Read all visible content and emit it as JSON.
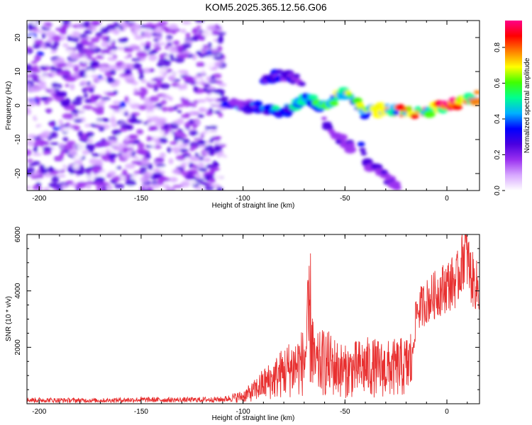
{
  "title": "KOM5.2025.365.12.56.G06",
  "chart_data": [
    {
      "type": "heatmap",
      "xlabel": "Height of straight line (km)",
      "ylabel": "Frequency (Hz)",
      "xlim": [
        -206,
        16
      ],
      "ylim": [
        -25,
        25
      ],
      "xticks": [
        -200,
        -150,
        -100,
        -50,
        0
      ],
      "yticks": [
        -20,
        -10,
        0,
        10,
        20
      ],
      "colorbar": {
        "label": "Normalized spectral amplitude",
        "range": [
          0,
          0.95
        ],
        "ticks": [
          0,
          0.2,
          0.4,
          0.6,
          0.8
        ],
        "colors": [
          "#ffffff",
          "#d8a8ff",
          "#9a30f0",
          "#4a00e0",
          "#0000ff",
          "#00b0ff",
          "#00ff90",
          "#40ff00",
          "#ffff00",
          "#ff8000",
          "#ff0000",
          "#ff0088"
        ]
      },
      "features": [
        {
          "name": "noise",
          "x_range": [
            -206,
            -110
          ],
          "y_range": [
            -25,
            25
          ],
          "amplitude": 0.2
        },
        {
          "name": "trace",
          "points": [
            [
              -110,
              1
            ],
            [
              -100,
              0
            ],
            [
              -90,
              -1
            ],
            [
              -80,
              -2
            ],
            [
              -70,
              2
            ],
            [
              -60,
              0
            ],
            [
              -50,
              4
            ],
            [
              -40,
              -2
            ],
            [
              -30,
              -1
            ],
            [
              -20,
              -2
            ],
            [
              -10,
              -2
            ],
            [
              0,
              0
            ],
            [
              10,
              1
            ],
            [
              16,
              3
            ]
          ],
          "amplitude": 0.95
        },
        {
          "name": "mode-2",
          "points": [
            [
              -60,
              -5
            ],
            [
              -52,
              -10
            ],
            [
              -46,
              -13
            ]
          ],
          "amplitude": 0.3
        },
        {
          "name": "mode-3",
          "points": [
            [
              -42,
              -12
            ],
            [
              -38,
              -18
            ],
            [
              -30,
              -21
            ],
            [
              -24,
              -25
            ]
          ],
          "amplitude": 0.3
        },
        {
          "name": "mode-4",
          "points": [
            [
              -90,
              8
            ],
            [
              -80,
              9
            ],
            [
              -70,
              7
            ]
          ],
          "amplitude": 0.35
        }
      ]
    },
    {
      "type": "line",
      "xlabel": "Height of straight line (km)",
      "ylabel": "SNR (10 * v/v)",
      "xlim": [
        -206,
        16
      ],
      "ylim": [
        0,
        6000
      ],
      "xticks": [
        -200,
        -150,
        -100,
        -50,
        0
      ],
      "yticks": [
        2000,
        4000,
        6000
      ],
      "color": "#e83030",
      "series": [
        {
          "name": "SNR",
          "x": [
            -206,
            -190,
            -170,
            -150,
            -130,
            -110,
            -100,
            -95,
            -90,
            -85,
            -80,
            -75,
            -70,
            -67,
            -65,
            -60,
            -50,
            -40,
            -30,
            -20,
            -17,
            -15,
            -10,
            -5,
            0,
            5,
            9,
            12,
            16
          ],
          "values": [
            150,
            140,
            130,
            160,
            150,
            170,
            300,
            500,
            800,
            1000,
            1300,
            1500,
            1700,
            3500,
            1500,
            1700,
            1300,
            1500,
            1400,
            1500,
            1800,
            3500,
            3900,
            4200,
            4500,
            4700,
            5900,
            4800,
            4300
          ]
        }
      ]
    }
  ]
}
